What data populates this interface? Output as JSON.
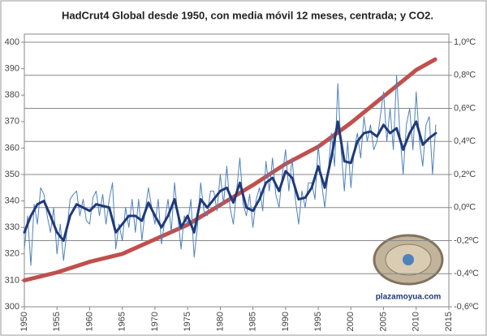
{
  "chart_data": {
    "type": "line",
    "title": "HadCrut4 Global desde 1950, con media móvil 12 meses, centrada; y CO2.",
    "annotation": "plazamoyua.com",
    "xlim": [
      1950,
      2015
    ],
    "xticks": [
      1950,
      1955,
      1960,
      1965,
      1970,
      1975,
      1980,
      1985,
      1990,
      1995,
      2000,
      2005,
      2010,
      2015
    ],
    "ylim": [
      300,
      400
    ],
    "yticks": [
      300,
      310,
      320,
      330,
      340,
      350,
      360,
      370,
      380,
      390,
      400
    ],
    "y2lim": [
      -0.6,
      1.0
    ],
    "y2ticks": [
      {
        "value": -0.6,
        "label": "-0,6ºC"
      },
      {
        "value": -0.4,
        "label": "-0,4ºC"
      },
      {
        "value": -0.2,
        "label": "-0,2ºC"
      },
      {
        "value": 0.0,
        "label": "0,0ºC"
      },
      {
        "value": 0.2,
        "label": "0,2ºC"
      },
      {
        "value": 0.4,
        "label": "0,4ºC"
      },
      {
        "value": 0.6,
        "label": "0,6ºC"
      },
      {
        "value": 0.8,
        "label": "0,8ºC"
      },
      {
        "value": 1.0,
        "label": "1,0ºC"
      }
    ],
    "grid": "y2",
    "series": [
      {
        "color": "#c0504d",
        "width": 5,
        "x": [
          1950,
          1955,
          1960,
          1965,
          1970,
          1975,
          1980,
          1985,
          1990,
          1995,
          2000,
          2005,
          2010,
          2012.9
        ],
        "values": [
          310,
          313,
          317,
          320,
          325.5,
          331,
          338.5,
          346,
          354,
          360.5,
          369.5,
          379.5,
          389.5,
          393.5
        ]
      },
      {
        "color": "#4f81bd",
        "width": 1,
        "axis": "y2",
        "x": [
          1950,
          1950.5,
          1951,
          1951.5,
          1952,
          1952.5,
          1953,
          1953.5,
          1954,
          1954.5,
          1955,
          1955.5,
          1956,
          1956.5,
          1957,
          1957.5,
          1958,
          1958.5,
          1959,
          1959.5,
          1960,
          1960.5,
          1961,
          1961.5,
          1962,
          1962.5,
          1963,
          1963.5,
          1964,
          1964.5,
          1965,
          1965.5,
          1966,
          1966.5,
          1967,
          1967.5,
          1968,
          1968.5,
          1969,
          1969.5,
          1970,
          1970.5,
          1971,
          1971.5,
          1972,
          1972.5,
          1973,
          1973.5,
          1974,
          1974.5,
          1975,
          1975.5,
          1976,
          1976.5,
          1977,
          1977.5,
          1978,
          1978.5,
          1979,
          1979.5,
          1980,
          1980.5,
          1981,
          1981.5,
          1982,
          1982.5,
          1983,
          1983.5,
          1984,
          1984.5,
          1985,
          1985.5,
          1986,
          1986.5,
          1987,
          1987.5,
          1988,
          1988.5,
          1989,
          1989.5,
          1990,
          1990.5,
          1991,
          1991.5,
          1992,
          1992.5,
          1993,
          1993.5,
          1994,
          1994.5,
          1995,
          1995.5,
          1996,
          1996.5,
          1997,
          1997.5,
          1998,
          1998.5,
          1999,
          1999.5,
          2000,
          2000.5,
          2001,
          2001.5,
          2002,
          2002.5,
          2003,
          2003.5,
          2004,
          2004.5,
          2005,
          2005.5,
          2006,
          2006.5,
          2007,
          2007.5,
          2008,
          2008.5,
          2009,
          2009.5,
          2010,
          2010.5,
          2011,
          2011.5,
          2012,
          2012.5,
          2013
        ],
        "values": [
          -0.25,
          -0.05,
          -0.35,
          0.02,
          -0.1,
          0.12,
          0.08,
          -0.05,
          -0.15,
          0.0,
          -0.28,
          -0.1,
          -0.32,
          -0.15,
          0.05,
          0.08,
          0.1,
          -0.05,
          0.05,
          -0.08,
          -0.1,
          0.06,
          0.1,
          -0.05,
          0.08,
          -0.1,
          0.05,
          0.15,
          -0.25,
          -0.1,
          -0.2,
          0.0,
          -0.12,
          0.05,
          -0.15,
          0.05,
          -0.2,
          -0.02,
          0.12,
          0.0,
          -0.1,
          0.05,
          -0.22,
          -0.08,
          0.05,
          -0.15,
          0.15,
          -0.05,
          -0.25,
          -0.05,
          -0.1,
          0.05,
          -0.3,
          -0.12,
          0.15,
          -0.02,
          -0.05,
          0.1,
          0.1,
          -0.02,
          0.2,
          0.02,
          0.25,
          0.0,
          -0.1,
          0.1,
          0.3,
          0.02,
          -0.05,
          0.08,
          -0.12,
          0.05,
          0.12,
          -0.02,
          0.28,
          0.1,
          0.3,
          0.08,
          0.0,
          0.2,
          0.35,
          0.1,
          0.3,
          0.05,
          -0.1,
          0.1,
          0.0,
          0.15,
          0.15,
          0.05,
          0.38,
          0.15,
          0.0,
          0.2,
          0.45,
          0.25,
          0.75,
          0.35,
          0.1,
          0.4,
          0.12,
          0.35,
          0.45,
          0.3,
          0.55,
          0.4,
          0.5,
          0.35,
          0.4,
          0.55,
          0.7,
          0.4,
          0.6,
          0.35,
          0.8,
          0.45,
          0.2,
          0.5,
          0.6,
          0.35,
          0.7,
          0.4,
          0.25,
          0.5,
          0.55,
          0.2,
          0.5
        ]
      },
      {
        "color": "#1f3a7a",
        "width": 3,
        "axis": "y2",
        "x": [
          1950,
          1951,
          1952,
          1953,
          1954,
          1955,
          1956,
          1957,
          1958,
          1959,
          1960,
          1961,
          1962,
          1963,
          1964,
          1965,
          1966,
          1967,
          1968,
          1969,
          1970,
          1971,
          1972,
          1973,
          1974,
          1975,
          1976,
          1977,
          1978,
          1979,
          1980,
          1981,
          1982,
          1983,
          1984,
          1985,
          1986,
          1987,
          1988,
          1989,
          1990,
          1991,
          1992,
          1993,
          1994,
          1995,
          1996,
          1997,
          1998,
          1999,
          2000,
          2001,
          2002,
          2003,
          2004,
          2005,
          2006,
          2007,
          2008,
          2009,
          2010,
          2011,
          2012,
          2013
        ],
        "values": [
          -0.15,
          -0.05,
          0.02,
          0.04,
          -0.05,
          -0.15,
          -0.2,
          -0.05,
          0.02,
          0.0,
          -0.02,
          0.02,
          0.01,
          0.0,
          -0.15,
          -0.1,
          -0.05,
          -0.05,
          -0.08,
          0.03,
          -0.05,
          -0.12,
          -0.05,
          0.05,
          -0.12,
          -0.05,
          -0.15,
          0.05,
          0.0,
          0.05,
          0.1,
          0.12,
          0.03,
          0.15,
          0.0,
          -0.02,
          0.05,
          0.15,
          0.18,
          0.1,
          0.22,
          0.18,
          0.05,
          0.06,
          0.12,
          0.25,
          0.12,
          0.3,
          0.52,
          0.28,
          0.27,
          0.4,
          0.45,
          0.46,
          0.43,
          0.5,
          0.45,
          0.48,
          0.35,
          0.45,
          0.52,
          0.38,
          0.42,
          0.45
        ]
      }
    ]
  }
}
